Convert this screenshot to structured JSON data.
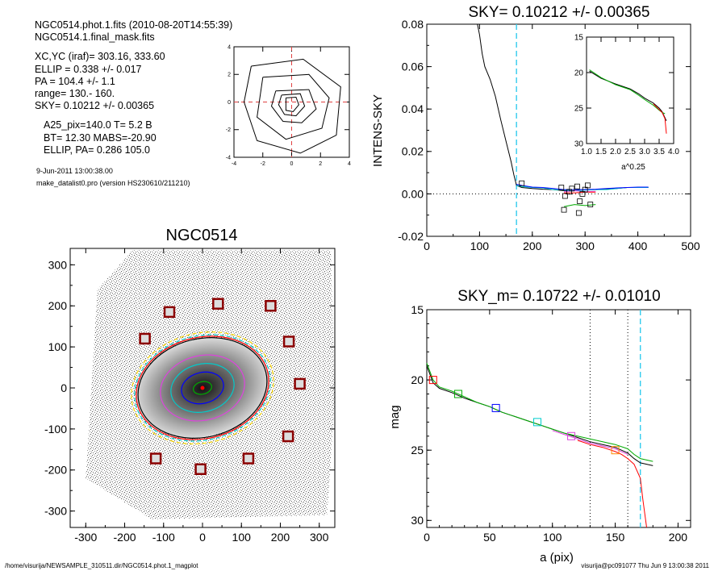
{
  "header": {
    "line1": "NGC0514.phot.1.fits  (2010-08-20T14:55:39)",
    "line2": "NGC0514.1.final_mask.fits",
    "xcyc": "XC,YC (iraf)=    303.16, 333.60",
    "ellip": "ELLIP = 0.338 +/- 0.017",
    "pa": "PA    = 104.4 +/-   1.1",
    "range": "range=  130.-  160.",
    "sky": "SKY= 0.10212 +/- 0.00365",
    "a25": "A25_pix=140.0   T= 5.2  B",
    "bt": "BT=  12.30   MABS=-20.90",
    "ellip_pa": "ELLIP, PA= 0.286  105.0",
    "date": "9-Jun-2011 13:00:38.00",
    "program": "make_datalist0.pro (version HS230610/211210)"
  },
  "footer": {
    "path": "/home/visurija/NEWSAMPLE_310511.dir/NGC0514.phot.1_magplot",
    "user": "visurija@pc091077  Thu Jun  9 13:00:38 2011"
  },
  "chart_data": [
    {
      "id": "contour-inset",
      "type": "contour",
      "title": "",
      "xticks": [
        "-4",
        "-2",
        "0",
        "2",
        "4"
      ],
      "yticks": [
        "-4",
        "-2",
        "0",
        "2",
        "4"
      ],
      "xlim": [
        -4,
        4
      ],
      "ylim": [
        -4,
        4
      ],
      "center": [
        0,
        0
      ],
      "contours": [
        [
          [
            -1.1,
            0.8
          ],
          [
            1.2,
            0.9
          ],
          [
            1.7,
            -0.5
          ],
          [
            0.7,
            -1.5
          ],
          [
            -0.6,
            -1.4
          ],
          [
            -1.4,
            -0.3
          ]
        ],
        [
          [
            -2.0,
            1.8
          ],
          [
            1.2,
            2.0
          ],
          [
            2.6,
            0.3
          ],
          [
            2.1,
            -1.9
          ],
          [
            -0.4,
            -2.7
          ],
          [
            -2.4,
            -1.1
          ]
        ],
        [
          [
            -2.8,
            2.6
          ],
          [
            0.8,
            3.1
          ],
          [
            3.4,
            1.1
          ],
          [
            3.1,
            -2.4
          ],
          [
            0.6,
            -3.7
          ],
          [
            -2.4,
            -2.8
          ],
          [
            -3.3,
            0.0
          ]
        ],
        [
          [
            -0.4,
            0.3
          ],
          [
            0.3,
            0.35
          ],
          [
            0.5,
            -0.2
          ],
          [
            0.1,
            -0.7
          ],
          [
            -0.4,
            -0.6
          ]
        ],
        [
          [
            -0.7,
            0.5
          ],
          [
            0.6,
            0.6
          ],
          [
            0.9,
            -0.3
          ],
          [
            0.3,
            -1.0
          ],
          [
            -0.5,
            -0.9
          ],
          [
            -0.9,
            -0.2
          ]
        ]
      ]
    },
    {
      "id": "sky-plot",
      "type": "line",
      "title": "SKY= 0.10212 +/- 0.00365",
      "xlabel": "",
      "ylabel": "INTENS-SKY",
      "xticks": [
        "0",
        "100",
        "200",
        "300",
        "400",
        "500"
      ],
      "yticks": [
        "-0.02",
        "0.00",
        "0.02",
        "0.04",
        "0.06",
        "0.08"
      ],
      "xlim": [
        0,
        500
      ],
      "ylim": [
        -0.02,
        0.08
      ],
      "sky_line_x": 170,
      "series": [
        {
          "color": "#000000",
          "x": [
            96,
            100,
            105,
            110,
            120,
            130,
            140,
            150,
            160,
            165,
            170,
            180,
            200,
            220,
            240,
            260,
            280,
            300,
            320,
            340,
            360,
            380,
            400,
            420
          ],
          "y": [
            0.08,
            0.075,
            0.066,
            0.06,
            0.054,
            0.046,
            0.035,
            0.025,
            0.015,
            0.009,
            0.004,
            0.003,
            0.0025,
            0.0022,
            0.002,
            0.0015,
            0.0015,
            0.002,
            0.002,
            0.0022,
            0.0025,
            0.003,
            0.003,
            0.003
          ]
        },
        {
          "color": "#00cccc",
          "x": [
            170,
            180,
            200,
            220,
            240,
            260,
            280,
            300,
            320,
            340,
            360,
            380,
            400,
            420
          ],
          "y": [
            0.004,
            0.0035,
            0.003,
            0.0028,
            0.002,
            0.0018,
            0.0015,
            0.0018,
            0.002,
            0.002,
            0.0025,
            0.003,
            0.003,
            0.003
          ]
        },
        {
          "color": "#0000ff",
          "x": [
            170,
            180,
            200,
            220,
            240,
            260,
            280,
            300,
            320,
            340,
            360,
            380,
            400,
            420
          ],
          "y": [
            0.0045,
            0.004,
            0.0032,
            0.003,
            0.0025,
            0.002,
            0.002,
            0.002,
            0.0022,
            0.0025,
            0.0028,
            0.003,
            0.0032,
            0.0032
          ]
        },
        {
          "color": "#00aa00",
          "x": [
            260,
            280,
            300,
            320
          ],
          "y": [
            -0.006,
            -0.005,
            -0.0055,
            -0.005
          ]
        },
        {
          "color": "#dd44dd",
          "x": [
            260,
            280,
            300,
            320
          ],
          "y": [
            0.001,
            0.0015,
            0.001,
            0.0012
          ]
        },
        {
          "color": "#ff0000",
          "x": [
            260,
            280,
            300,
            320
          ],
          "y": [
            0.0005,
            0.0005,
            0.0008,
            0.0008
          ]
        }
      ],
      "squares": [
        [
          180,
          0.005
        ],
        [
          255,
          0.003
        ],
        [
          262,
          -0.001
        ],
        [
          270,
          0.001
        ],
        [
          275,
          0.0025
        ],
        [
          285,
          0.0035
        ],
        [
          290,
          -0.0035
        ],
        [
          295,
          0.0
        ],
        [
          300,
          0.002
        ],
        [
          260,
          -0.0075
        ],
        [
          288,
          -0.009
        ],
        [
          310,
          -0.005
        ],
        [
          305,
          0.004
        ]
      ],
      "inset": {
        "xlabel": "a^0.25",
        "xticks": [
          "1.0",
          "1.5",
          "2.0",
          "2.5",
          "3.0",
          "3.5",
          "4.0"
        ],
        "yticks": [
          "15",
          "20",
          "25",
          "30"
        ],
        "xlim": [
          1.0,
          4.0
        ],
        "ylim": [
          15,
          30
        ],
        "series": [
          {
            "color": "#000000",
            "x": [
              1.1,
              1.5,
              2.0,
              2.5,
              2.8,
              3.0,
              3.3,
              3.5,
              3.6,
              3.75
            ],
            "y": [
              19.8,
              20.8,
              21.6,
              22.3,
              23.0,
              23.6,
              24.3,
              25.0,
              25.5,
              26.8
            ]
          },
          {
            "color": "#00aa00",
            "x": [
              1.1,
              1.5,
              2.0,
              2.5,
              2.8,
              3.0,
              3.3,
              3.5,
              3.6,
              3.7
            ],
            "y": [
              19.6,
              20.7,
              21.7,
              22.4,
              23.2,
              23.8,
              24.6,
              25.3,
              25.6,
              25.8
            ]
          },
          {
            "color": "#ff0000",
            "x": [
              3.3,
              3.5,
              3.6,
              3.7,
              3.75
            ],
            "y": [
              24.4,
              25.2,
              25.6,
              26.5,
              28.6
            ]
          }
        ]
      }
    },
    {
      "id": "galaxy-image",
      "type": "image",
      "title": "NGC0514",
      "xticks": [
        "-300",
        "-200",
        "-100",
        "0",
        "100",
        "200",
        "300"
      ],
      "yticks": [
        "-300",
        "-200",
        "-100",
        "0",
        "100",
        "200",
        "300"
      ],
      "xlim": [
        -340,
        340
      ],
      "ylim": [
        -340,
        340
      ],
      "squares": [
        [
          -85,
          185
        ],
        [
          40,
          205
        ],
        [
          175,
          200
        ],
        [
          -148,
          120
        ],
        [
          222,
          113
        ],
        [
          250,
          10
        ],
        [
          220,
          -118
        ],
        [
          -120,
          -172
        ],
        [
          -5,
          -198
        ],
        [
          118,
          -172
        ]
      ],
      "ellipses": [
        {
          "a": 245,
          "b": 175,
          "pa": 14,
          "color": "#000000",
          "dash": false
        },
        {
          "a": 258,
          "b": 185,
          "pa": 14,
          "color": "#00cccc",
          "dash": true
        },
        {
          "a": 252,
          "b": 180,
          "pa": 14,
          "color": "#ff0000",
          "dash": false
        },
        {
          "a": 270,
          "b": 195,
          "pa": 14,
          "color": "#ffd700",
          "dash": true
        },
        {
          "a": 160,
          "b": 115,
          "pa": 14,
          "color": "#dd44dd",
          "dash": false
        },
        {
          "a": 120,
          "b": 85,
          "pa": 14,
          "color": "#00cccc",
          "dash": false
        },
        {
          "a": 80,
          "b": 55,
          "pa": 14,
          "color": "#0000ff",
          "dash": false
        },
        {
          "a": 35,
          "b": 22,
          "pa": 14,
          "color": "#00aa00",
          "dash": false
        }
      ]
    },
    {
      "id": "mag-profile",
      "type": "line",
      "title": "SKY_m=  0.10722 +/- 0.01010",
      "xlabel": "a (pix)",
      "ylabel": "mag",
      "xticks": [
        "0",
        "50",
        "100",
        "150",
        "200"
      ],
      "yticks": [
        "15",
        "20",
        "25",
        "30"
      ],
      "xlim": [
        0,
        210
      ],
      "ylim": [
        15,
        30.5
      ],
      "dotted_x": [
        130,
        160
      ],
      "sky_line_x": 170,
      "series": [
        {
          "color": "#000000",
          "x": [
            0,
            5,
            10,
            20,
            30,
            40,
            50,
            60,
            70,
            80,
            90,
            100,
            110,
            120,
            130,
            140,
            150,
            160,
            165,
            170,
            175,
            180
          ],
          "y": [
            19.0,
            20.2,
            20.6,
            20.9,
            21.3,
            21.6,
            21.9,
            22.3,
            22.6,
            22.9,
            23.2,
            23.5,
            23.8,
            24.1,
            24.4,
            24.6,
            24.8,
            25.2,
            25.6,
            25.9,
            26.0,
            26.1
          ]
        },
        {
          "color": "#00aa00",
          "x": [
            0,
            5,
            10,
            20,
            30,
            40,
            50,
            60,
            70,
            80,
            90,
            100,
            110,
            120,
            130,
            140,
            150,
            160,
            165,
            170,
            175,
            180
          ],
          "y": [
            18.8,
            20.0,
            20.5,
            20.8,
            21.2,
            21.6,
            21.9,
            22.3,
            22.6,
            22.9,
            23.2,
            23.5,
            23.8,
            24.0,
            24.2,
            24.4,
            24.6,
            24.9,
            25.3,
            25.6,
            25.7,
            25.8
          ]
        },
        {
          "color": "#ff0000",
          "x": [
            120,
            130,
            140,
            150,
            155,
            160,
            165,
            170,
            172,
            175
          ],
          "y": [
            24.3,
            24.6,
            24.8,
            25.1,
            25.3,
            25.6,
            26.0,
            27.0,
            28.5,
            30.5
          ]
        },
        {
          "color": "#dd44dd",
          "x": [
            100,
            110,
            120,
            130,
            140,
            150,
            160
          ],
          "y": [
            23.6,
            23.9,
            24.2,
            24.5,
            24.7,
            24.9,
            25.3
          ]
        }
      ],
      "squares": [
        [
          5,
          20.0,
          "#ff0000"
        ],
        [
          25,
          21.0,
          "#00aa00"
        ],
        [
          55,
          22.0,
          "#0000ff"
        ],
        [
          88,
          23.0,
          "#00cccc"
        ],
        [
          115,
          24.0,
          "#dd44dd"
        ],
        [
          150,
          25.0,
          "#ff8800"
        ]
      ]
    }
  ]
}
